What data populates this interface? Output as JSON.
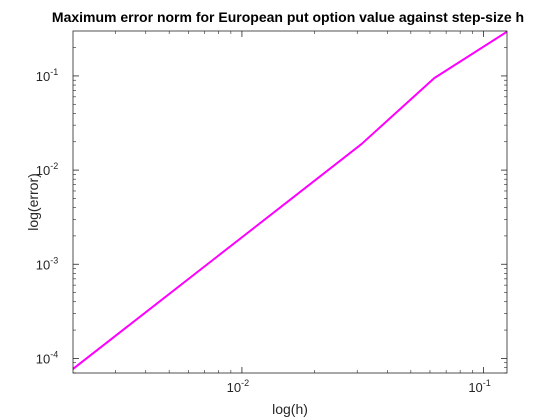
{
  "chart_data": {
    "type": "line",
    "title": "Maximum error norm for European put option value against step-size h",
    "xlabel": "log(h)",
    "ylabel": "log(error)",
    "xscale": "log",
    "yscale": "log",
    "xlim": [
      0.002,
      0.125
    ],
    "ylim": [
      7e-05,
      0.3
    ],
    "x_ticks": [
      {
        "base": "10",
        "exp": "-2",
        "value": 0.01
      },
      {
        "base": "10",
        "exp": "-1",
        "value": 0.1
      }
    ],
    "y_ticks": [
      {
        "base": "10",
        "exp": "-4",
        "value": 0.0001
      },
      {
        "base": "10",
        "exp": "-3",
        "value": 0.001
      },
      {
        "base": "10",
        "exp": "-2",
        "value": 0.01
      },
      {
        "base": "10",
        "exp": "-1",
        "value": 0.1
      }
    ],
    "grid": false,
    "series": [
      {
        "color": "#ff00ff",
        "x": [
          0.001953125,
          0.00390625,
          0.0078125,
          0.015625,
          0.03125,
          0.0625,
          0.125
        ],
        "y": [
          7.37e-05,
          0.000295,
          0.00118,
          0.00472,
          0.0189,
          0.0948,
          0.295
        ]
      }
    ]
  }
}
